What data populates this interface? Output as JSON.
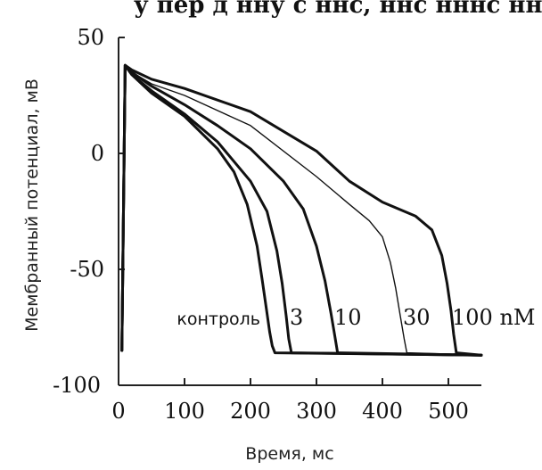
{
  "top_fragment": "у пер д нну с ннс, ннс нннс нн",
  "chart_data": {
    "type": "line",
    "title": "",
    "xlabel": "Время, мс",
    "ylabel": "Мембранный потенциал, мВ",
    "xlim": [
      0,
      550
    ],
    "ylim": [
      -100,
      50
    ],
    "x_ticks": [
      "0",
      "100",
      "200",
      "300",
      "400",
      "500"
    ],
    "y_ticks": [
      "50",
      "0",
      "-50",
      "-100"
    ],
    "grid": false,
    "legend": "inline labels near curve ends",
    "series": [
      {
        "name": "контроль",
        "x": [
          5,
          10,
          20,
          50,
          100,
          150,
          175,
          195,
          210,
          218,
          224,
          229,
          233,
          237,
          550
        ],
        "y": [
          -85,
          38,
          34,
          26,
          16,
          2,
          -8,
          -22,
          -40,
          -55,
          -67,
          -77,
          -83,
          -86,
          -87
        ]
      },
      {
        "name": "3",
        "x": [
          5,
          10,
          20,
          50,
          100,
          150,
          200,
          225,
          240,
          248,
          254,
          258,
          262,
          550
        ],
        "y": [
          -85,
          38,
          34,
          27,
          17,
          5,
          -12,
          -25,
          -42,
          -56,
          -70,
          -80,
          -86,
          -87
        ]
      },
      {
        "name": "10",
        "x": [
          5,
          10,
          20,
          50,
          100,
          150,
          200,
          250,
          280,
          300,
          313,
          322,
          328,
          332,
          550
        ],
        "y": [
          -85,
          38,
          35,
          29,
          21,
          12,
          2,
          -12,
          -24,
          -40,
          -55,
          -69,
          -79,
          -86,
          -87
        ]
      },
      {
        "name": "30",
        "x": [
          5,
          10,
          20,
          50,
          100,
          200,
          300,
          350,
          380,
          400,
          412,
          420,
          427,
          433,
          437,
          550
        ],
        "y": [
          -85,
          38,
          35,
          30,
          25,
          12,
          -10,
          -22,
          -29,
          -36,
          -47,
          -58,
          -70,
          -80,
          -86,
          -87
        ]
      },
      {
        "name": "100 nM",
        "x": [
          5,
          10,
          20,
          50,
          100,
          200,
          300,
          350,
          400,
          450,
          475,
          490,
          498,
          504,
          508,
          512,
          550
        ],
        "y": [
          -85,
          38,
          36,
          32,
          28,
          18,
          1,
          -12,
          -21,
          -27,
          -33,
          -44,
          -56,
          -68,
          -78,
          -86,
          -87
        ]
      }
    ]
  }
}
